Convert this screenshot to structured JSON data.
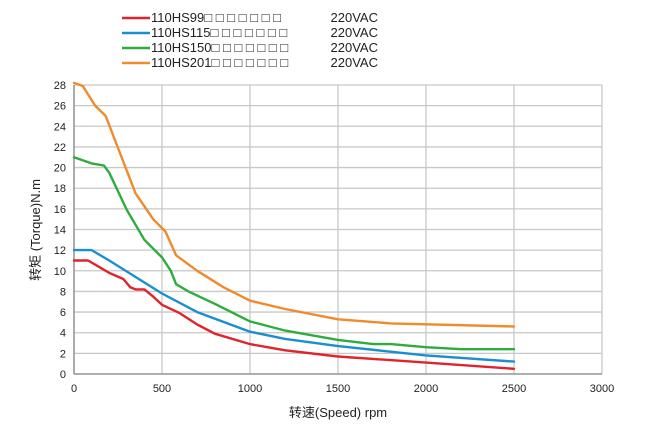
{
  "chart_data": {
    "type": "line",
    "title": "",
    "xlabel": "转速(Speed) rpm",
    "ylabel": "转矩 (Torque)N.m",
    "xlim": [
      0,
      3000
    ],
    "ylim": [
      0,
      28
    ],
    "xticks": [
      0,
      500,
      1000,
      1500,
      2000,
      2500,
      3000
    ],
    "yticks": [
      0,
      2,
      4,
      6,
      8,
      10,
      12,
      14,
      16,
      18,
      20,
      22,
      24,
      26,
      28
    ],
    "grid": true,
    "legend_placement": "top-left",
    "series": [
      {
        "name": "110HS99□ □ □ □ □ □ □",
        "suffix": "220VAC",
        "color": "#e0242b",
        "points": [
          [
            0,
            11
          ],
          [
            80,
            11
          ],
          [
            150,
            10.3
          ],
          [
            200,
            9.8
          ],
          [
            280,
            9.2
          ],
          [
            320,
            8.4
          ],
          [
            350,
            8.2
          ],
          [
            400,
            8.2
          ],
          [
            450,
            7.5
          ],
          [
            500,
            6.7
          ],
          [
            600,
            5.9
          ],
          [
            700,
            4.8
          ],
          [
            800,
            3.9
          ],
          [
            1000,
            2.9
          ],
          [
            1200,
            2.3
          ],
          [
            1500,
            1.7
          ],
          [
            2000,
            1.1
          ],
          [
            2500,
            0.5
          ]
        ]
      },
      {
        "name": "110HS115□ □ □ □ □ □ □",
        "suffix": "220VAC",
        "color": "#1a8fd0",
        "points": [
          [
            0,
            12
          ],
          [
            100,
            12
          ],
          [
            200,
            11
          ],
          [
            350,
            9.4
          ],
          [
            500,
            7.8
          ],
          [
            700,
            6
          ],
          [
            1000,
            4.1
          ],
          [
            1200,
            3.4
          ],
          [
            1500,
            2.7
          ],
          [
            2000,
            1.8
          ],
          [
            2500,
            1.2
          ]
        ]
      },
      {
        "name": "110HS150□ □ □ □ □ □ □",
        "suffix": "220VAC",
        "color": "#2fac3e",
        "points": [
          [
            0,
            21
          ],
          [
            100,
            20.4
          ],
          [
            170,
            20.2
          ],
          [
            200,
            19.5
          ],
          [
            300,
            15.9
          ],
          [
            400,
            13
          ],
          [
            500,
            11.3
          ],
          [
            550,
            10
          ],
          [
            580,
            8.7
          ],
          [
            650,
            8
          ],
          [
            800,
            6.8
          ],
          [
            1000,
            5.1
          ],
          [
            1200,
            4.2
          ],
          [
            1500,
            3.3
          ],
          [
            1700,
            2.9
          ],
          [
            1800,
            2.9
          ],
          [
            2000,
            2.6
          ],
          [
            2200,
            2.4
          ],
          [
            2500,
            2.4
          ]
        ]
      },
      {
        "name": "110HS201□ □ □ □ □ □ □",
        "suffix": "220VAC",
        "color": "#f08a2c",
        "points": [
          [
            0,
            28.2
          ],
          [
            50,
            27.9
          ],
          [
            120,
            26
          ],
          [
            180,
            25
          ],
          [
            250,
            21.9
          ],
          [
            350,
            17.5
          ],
          [
            450,
            15
          ],
          [
            520,
            13.8
          ],
          [
            580,
            11.5
          ],
          [
            700,
            10
          ],
          [
            850,
            8.4
          ],
          [
            1000,
            7.1
          ],
          [
            1200,
            6.3
          ],
          [
            1500,
            5.3
          ],
          [
            1800,
            4.9
          ],
          [
            2500,
            4.6
          ]
        ]
      }
    ]
  }
}
